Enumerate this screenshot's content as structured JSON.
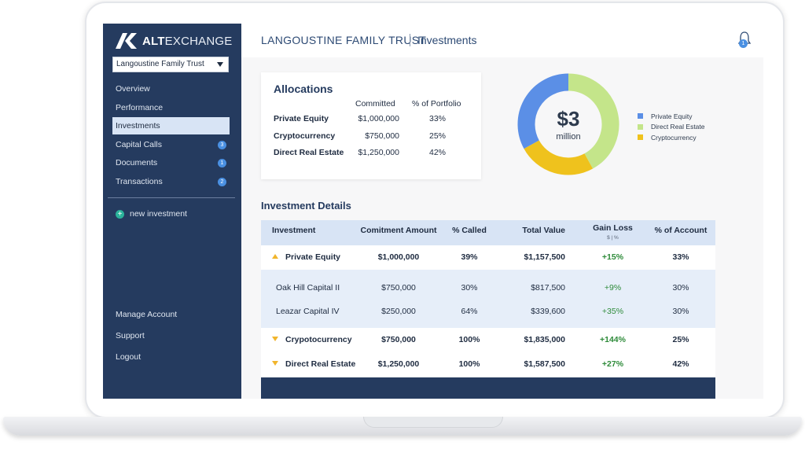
{
  "brand": {
    "bold": "ALT",
    "light": "EXCHANGE"
  },
  "trust_select": {
    "value": "Langoustine Family Trust"
  },
  "sidebar": {
    "items": [
      {
        "label": "Overview"
      },
      {
        "label": "Performance"
      },
      {
        "label": "Investments"
      },
      {
        "label": "Capital Calls",
        "badge": "3"
      },
      {
        "label": "Documents",
        "badge": "1"
      },
      {
        "label": "Transactions",
        "badge": "2"
      }
    ],
    "new_investment": "new investment",
    "bottom": [
      {
        "label": "Manage Account"
      },
      {
        "label": "Support"
      },
      {
        "label": "Logout"
      }
    ]
  },
  "header": {
    "title": "LANGOUSTINE FAMILY TRUST",
    "page": "Investments",
    "notifications": "1"
  },
  "allocations": {
    "title": "Allocations",
    "col_committed": "Committed",
    "col_pct": "% of Portfolio",
    "rows": [
      {
        "name": "Private Equity",
        "committed": "$1,000,000",
        "pct": "33%"
      },
      {
        "name": "Cryptocurrency",
        "committed": "$750,000",
        "pct": "25%"
      },
      {
        "name": "Direct Real Estate",
        "committed": "$1,250,000",
        "pct": "42%"
      }
    ]
  },
  "donut": {
    "total": "$3",
    "unit": "million",
    "segments": [
      {
        "label": "Private Equity",
        "value": 33,
        "color": "#5b8fe6"
      },
      {
        "label": "Direct Real Estate",
        "value": 42,
        "color": "#c4e58a"
      },
      {
        "label": "Cryptocurrency",
        "value": 25,
        "color": "#efc21d"
      }
    ]
  },
  "details": {
    "title": "Investment Details",
    "headers": {
      "investment": "Investment",
      "commitment": "Comitment Amount",
      "called": "% Called",
      "total": "Total Value",
      "gain": "Gain Loss",
      "gain_sub": "$ | %",
      "account": "% of Account"
    },
    "groups": [
      {
        "name": "Private Equity",
        "commitment": "$1,000,000",
        "called": "39%",
        "total": "$1,157,500",
        "gain": "+15%",
        "account": "33%",
        "expanded": true,
        "children": [
          {
            "name": "Oak Hill Capital II",
            "commitment": "$750,000",
            "called": "30%",
            "total": "$817,500",
            "gain": "+9%",
            "account": "30%"
          },
          {
            "name": "Leazar Capital IV",
            "commitment": "$250,000",
            "called": "64%",
            "total": "$339,600",
            "gain": "+35%",
            "account": "30%"
          }
        ]
      },
      {
        "name": "Crypotocurrency",
        "commitment": "$750,000",
        "called": "100%",
        "total": "$1,835,000",
        "gain": "+144%",
        "account": "25%"
      },
      {
        "name": "Direct Real Estate",
        "commitment": "$1,250,000",
        "called": "100%",
        "total": "$1,587,500",
        "gain": "+27%",
        "account": "42%"
      }
    ]
  }
}
